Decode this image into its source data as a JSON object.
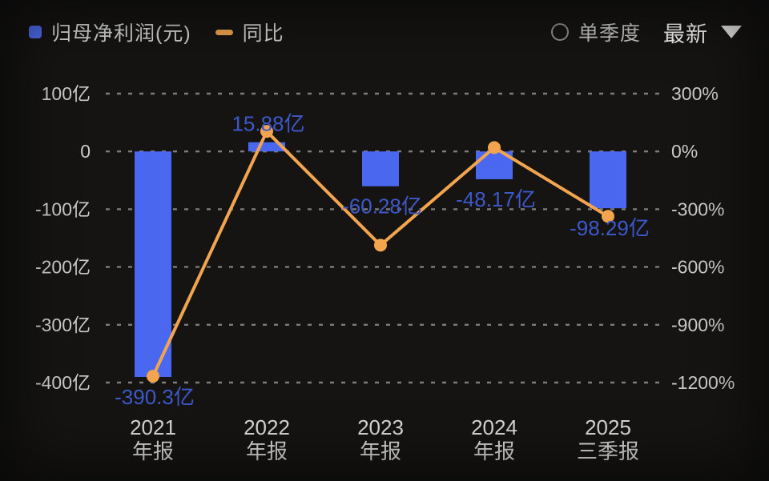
{
  "colors": {
    "background": "#151413",
    "bar": "#4a68ef",
    "bar_legend": "#4f6ef2",
    "line": "#f2a44e",
    "value_label": "#3d58c9",
    "axis_text": "#c9c9c9",
    "xaxis_text": "#d8d8d8",
    "grid": "#9a9a9a"
  },
  "legend": {
    "bar_label": "归母净利润(元)",
    "line_label": "同比"
  },
  "controls": {
    "quarter_toggle_label": "单季度",
    "period_dropdown_value": "最新"
  },
  "chart_data": {
    "type": "bar",
    "subtype": "bar+line dual-axis",
    "categories": [
      "2021 年报",
      "2022 年报",
      "2023 年报",
      "2024 年报",
      "2025 三季报"
    ],
    "category_lines": [
      [
        "2021",
        "年报"
      ],
      [
        "2022",
        "年报"
      ],
      [
        "2023",
        "年报"
      ],
      [
        "2024",
        "年报"
      ],
      [
        "2025",
        "三季报"
      ]
    ],
    "series": [
      {
        "name": "归母净利润(元)",
        "type": "bar",
        "axis": "left",
        "unit": "亿",
        "values": [
          -390.3,
          15.88,
          -60.28,
          -48.17,
          -98.29
        ],
        "labels": [
          "-390.3亿",
          "15.88亿",
          "-60.28亿",
          "-48.17亿",
          "-98.29亿"
        ]
      },
      {
        "name": "同比",
        "type": "line",
        "axis": "right",
        "unit": "%",
        "values": [
          -1167,
          104,
          -487,
          20,
          -337
        ],
        "note": "estimated from plot position; not labeled on screen"
      }
    ],
    "left_axis": {
      "ticks": [
        "100亿",
        "0",
        "-100亿",
        "-200亿",
        "-300亿",
        "-400亿"
      ],
      "tick_values": [
        100,
        0,
        -100,
        -200,
        -300,
        -400
      ],
      "range": [
        -400,
        100
      ]
    },
    "right_axis": {
      "ticks": [
        "300%",
        "0%",
        "-300%",
        "-600%",
        "-900%",
        "-1200%"
      ],
      "tick_values": [
        300,
        0,
        -300,
        -600,
        -900,
        -1200
      ],
      "range": [
        -1200,
        300
      ]
    },
    "grid": "dashed horizontal",
    "legend_position": "top-left"
  }
}
